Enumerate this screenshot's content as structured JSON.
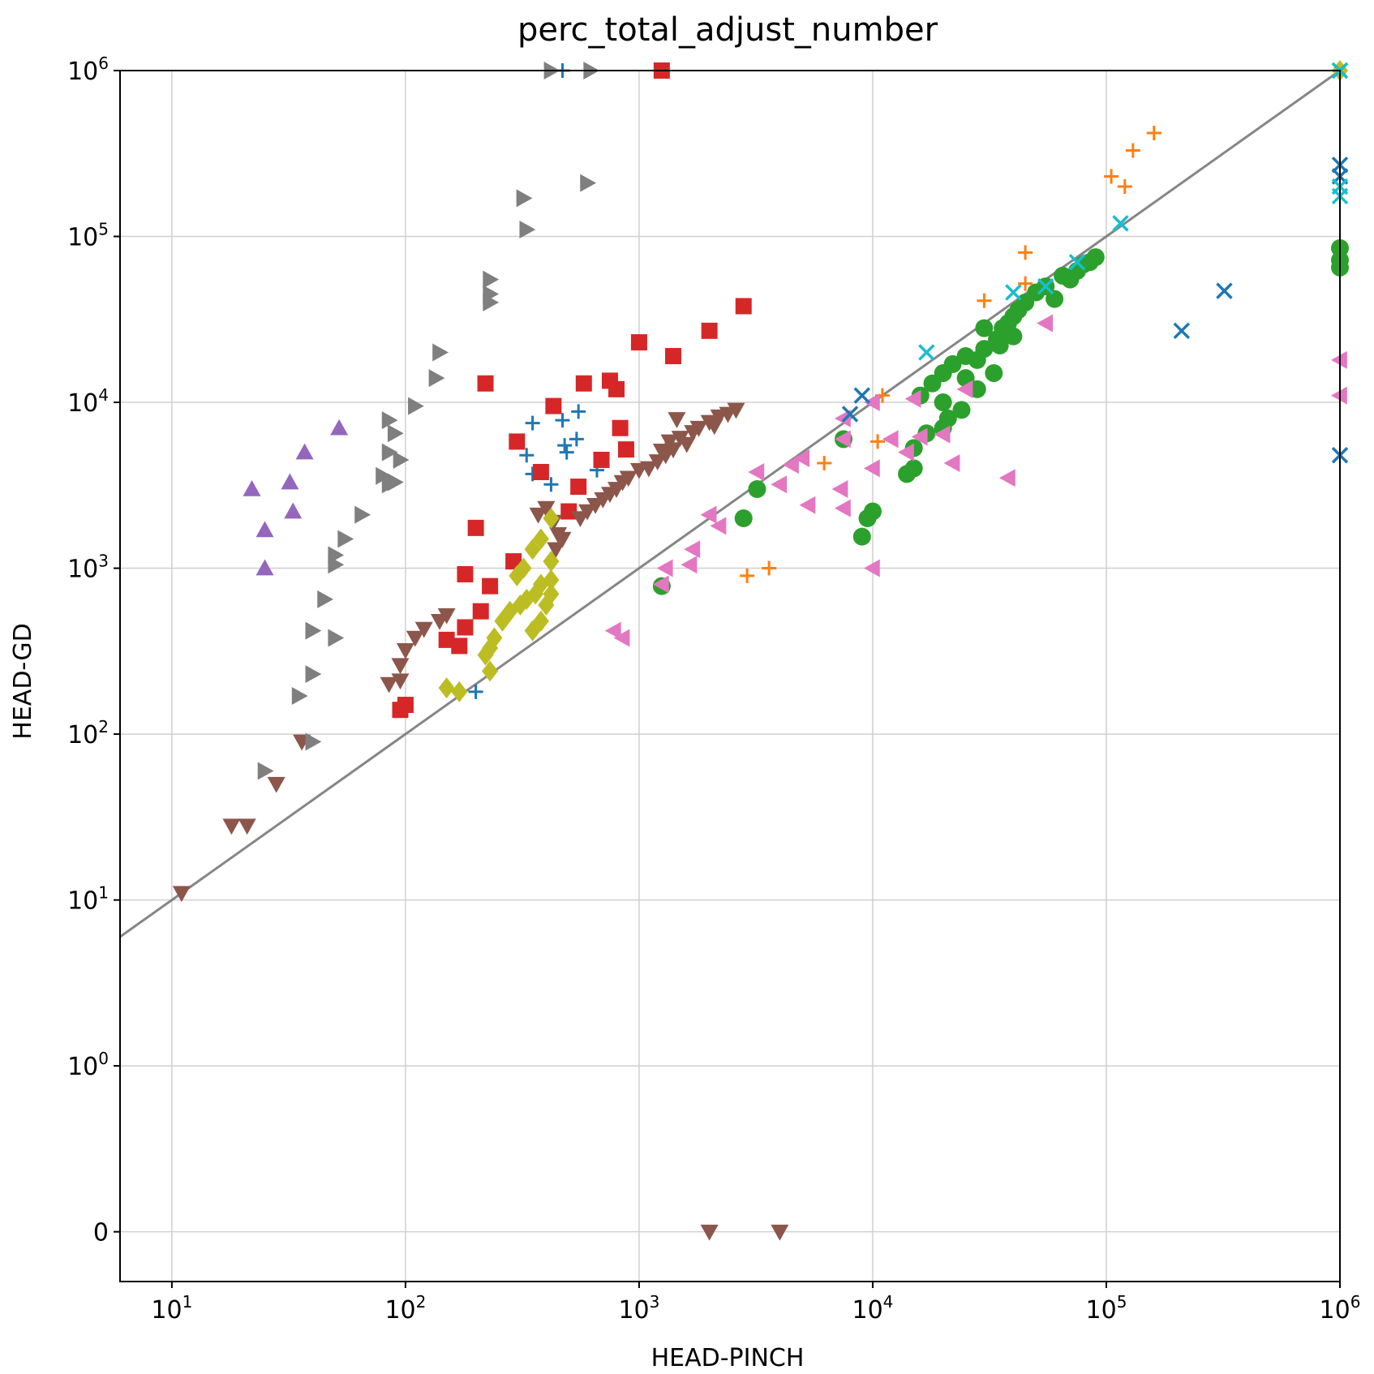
{
  "chart_data": {
    "type": "scatter",
    "title": "perc_total_adjust_number",
    "xlabel": "HEAD-PINCH",
    "ylabel": "HEAD-GD",
    "xscale": "log",
    "yscale": "symlog",
    "xlim": [
      6,
      1000000
    ],
    "ylim": [
      -0.3,
      1000000
    ],
    "grid": true,
    "legend": "none",
    "x_ticks": [
      {
        "value": 10,
        "base": "10",
        "exp": "1"
      },
      {
        "value": 100,
        "base": "10",
        "exp": "2"
      },
      {
        "value": 1000,
        "base": "10",
        "exp": "3"
      },
      {
        "value": 10000,
        "base": "10",
        "exp": "4"
      },
      {
        "value": 100000,
        "base": "10",
        "exp": "5"
      },
      {
        "value": 1000000,
        "base": "10",
        "exp": "6"
      }
    ],
    "y_ticks": [
      {
        "value": 0,
        "base": "0",
        "exp": ""
      },
      {
        "value": 1,
        "base": "10",
        "exp": "0"
      },
      {
        "value": 10,
        "base": "10",
        "exp": "1"
      },
      {
        "value": 100,
        "base": "10",
        "exp": "2"
      },
      {
        "value": 1000,
        "base": "10",
        "exp": "3"
      },
      {
        "value": 10000,
        "base": "10",
        "exp": "4"
      },
      {
        "value": 100000,
        "base": "10",
        "exp": "5"
      },
      {
        "value": 1000000,
        "base": "10",
        "exp": "6"
      }
    ],
    "reference_line": {
      "x": [
        6,
        1000000
      ],
      "y": [
        6,
        1000000
      ],
      "color": "#808080"
    },
    "series": [
      {
        "marker": "plus",
        "color": "#1f77b4",
        "points": [
          [
            470,
            1000000
          ],
          [
            350,
            7500
          ],
          [
            470,
            7800
          ],
          [
            550,
            8800
          ],
          [
            330,
            4800
          ],
          [
            480,
            5500
          ],
          [
            490,
            5000
          ],
          [
            540,
            6000
          ],
          [
            350,
            3700
          ],
          [
            420,
            3200
          ],
          [
            660,
            3900
          ],
          [
            200,
            180
          ]
        ]
      },
      {
        "marker": "plus",
        "color": "#ff7f0e",
        "points": [
          [
            160000,
            420000
          ],
          [
            130000,
            330000
          ],
          [
            105000,
            230000
          ],
          [
            120000,
            200000
          ],
          [
            45000,
            80000
          ],
          [
            45000,
            52000
          ],
          [
            30000,
            41000
          ],
          [
            21000,
            16000
          ],
          [
            11000,
            11000
          ],
          [
            10500,
            5800
          ],
          [
            6200,
            4300
          ],
          [
            3600,
            1000
          ],
          [
            2900,
            900
          ]
        ]
      },
      {
        "marker": "circle",
        "color": "#2ca02c",
        "points": [
          [
            90000,
            75000
          ],
          [
            80000,
            68000
          ],
          [
            65000,
            58000
          ],
          [
            55000,
            50000
          ],
          [
            50000,
            46000
          ],
          [
            45000,
            40000
          ],
          [
            42000,
            36000
          ],
          [
            40000,
            33000
          ],
          [
            38000,
            30000
          ],
          [
            36000,
            28000
          ],
          [
            34000,
            24000
          ],
          [
            30000,
            21000
          ],
          [
            28000,
            18000
          ],
          [
            25000,
            19000
          ],
          [
            22000,
            17000
          ],
          [
            20000,
            15000
          ],
          [
            18000,
            13000
          ],
          [
            16000,
            11000
          ],
          [
            30000,
            28000
          ],
          [
            35000,
            22000
          ],
          [
            40000,
            25000
          ],
          [
            25000,
            14000
          ],
          [
            24000,
            9000
          ],
          [
            21000,
            8000
          ],
          [
            20000,
            7000
          ],
          [
            17000,
            6500
          ],
          [
            15000,
            4000
          ],
          [
            14000,
            3700
          ],
          [
            15000,
            5300
          ],
          [
            10000,
            2200
          ],
          [
            9500,
            2000
          ],
          [
            9000,
            1550
          ],
          [
            7500,
            6000
          ],
          [
            3200,
            3000
          ],
          [
            2800,
            2000
          ],
          [
            1250,
            780
          ],
          [
            1000000,
            85000
          ],
          [
            1000000,
            72000
          ],
          [
            1000000,
            65000
          ],
          [
            33000,
            15000
          ],
          [
            28000,
            12000
          ],
          [
            20000,
            10000
          ],
          [
            60000,
            42000
          ],
          [
            70000,
            55000
          ],
          [
            85000,
            70000
          ],
          [
            75000,
            62000
          ]
        ]
      },
      {
        "marker": "square",
        "color": "#d62728",
        "points": [
          [
            1250,
            1000000
          ],
          [
            2800,
            38000
          ],
          [
            2000,
            27000
          ],
          [
            1400,
            19000
          ],
          [
            1000,
            23000
          ],
          [
            220,
            13000
          ],
          [
            430,
            9500
          ],
          [
            580,
            13000
          ],
          [
            750,
            13500
          ],
          [
            800,
            12000
          ],
          [
            830,
            7000
          ],
          [
            880,
            5200
          ],
          [
            690,
            4500
          ],
          [
            300,
            5800
          ],
          [
            380,
            3800
          ],
          [
            550,
            3100
          ],
          [
            500,
            2200
          ],
          [
            200,
            1750
          ],
          [
            290,
            1100
          ],
          [
            180,
            920
          ],
          [
            230,
            780
          ],
          [
            210,
            550
          ],
          [
            180,
            440
          ],
          [
            150,
            370
          ],
          [
            170,
            340
          ],
          [
            95,
            140
          ],
          [
            100,
            150
          ]
        ]
      },
      {
        "marker": "triangle-up",
        "color": "#9467bd",
        "points": [
          [
            52,
            7000
          ],
          [
            37,
            5000
          ],
          [
            32,
            3300
          ],
          [
            22,
            3000
          ],
          [
            33,
            2200
          ],
          [
            25,
            1700
          ],
          [
            25,
            1000
          ]
        ]
      },
      {
        "marker": "triangle-down",
        "color": "#8c564b",
        "points": [
          [
            2600,
            9000
          ],
          [
            2400,
            8500
          ],
          [
            2200,
            8200
          ],
          [
            2000,
            7600
          ],
          [
            1800,
            7000
          ],
          [
            1700,
            6600
          ],
          [
            1500,
            6100
          ],
          [
            1600,
            5600
          ],
          [
            1400,
            5200
          ],
          [
            1300,
            4800
          ],
          [
            1200,
            4400
          ],
          [
            1100,
            4000
          ],
          [
            1000,
            3900
          ],
          [
            900,
            3500
          ],
          [
            850,
            3300
          ],
          [
            800,
            3000
          ],
          [
            750,
            2800
          ],
          [
            700,
            2600
          ],
          [
            650,
            2400
          ],
          [
            600,
            2200
          ],
          [
            560,
            2000
          ],
          [
            1450,
            7900
          ],
          [
            1350,
            5800
          ],
          [
            1250,
            5100
          ],
          [
            2100,
            7200
          ],
          [
            400,
            2300
          ],
          [
            370,
            2100
          ],
          [
            430,
            1900
          ],
          [
            450,
            1600
          ],
          [
            470,
            1500
          ],
          [
            440,
            1300
          ],
          [
            150,
            520
          ],
          [
            140,
            480
          ],
          [
            120,
            430
          ],
          [
            110,
            380
          ],
          [
            100,
            320
          ],
          [
            95,
            260
          ],
          [
            85,
            200
          ],
          [
            95,
            210
          ],
          [
            36,
            90
          ],
          [
            28,
            50
          ],
          [
            21,
            28
          ],
          [
            18,
            28
          ],
          [
            11,
            11
          ],
          [
            2000,
            0
          ],
          [
            4000,
            0
          ]
        ]
      },
      {
        "marker": "triangle-left",
        "color": "#e377c2",
        "points": [
          [
            1000000,
            18000
          ],
          [
            1000000,
            11000
          ],
          [
            55000,
            30000
          ],
          [
            38000,
            3500
          ],
          [
            22000,
            4300
          ],
          [
            14000,
            5000
          ],
          [
            12000,
            6000
          ],
          [
            16000,
            6200
          ],
          [
            20000,
            6400
          ],
          [
            10000,
            4000
          ],
          [
            10000,
            10000
          ],
          [
            15000,
            10500
          ],
          [
            25000,
            12000
          ],
          [
            7500,
            8000
          ],
          [
            7500,
            6000
          ],
          [
            5000,
            4600
          ],
          [
            4500,
            4200
          ],
          [
            3200,
            3800
          ],
          [
            4000,
            3200
          ],
          [
            5300,
            2400
          ],
          [
            7300,
            3000
          ],
          [
            7500,
            2300
          ],
          [
            1700,
            1300
          ],
          [
            1650,
            1050
          ],
          [
            2000,
            2100
          ],
          [
            2200,
            1800
          ],
          [
            1300,
            1000
          ],
          [
            1250,
            800
          ],
          [
            780,
            420
          ],
          [
            850,
            380
          ],
          [
            10000,
            1000
          ]
        ]
      },
      {
        "marker": "triangle-right",
        "color": "#7f7f7f",
        "points": [
          [
            420,
            1000000
          ],
          [
            620,
            1000000
          ],
          [
            600,
            210000
          ],
          [
            320,
            170000
          ],
          [
            330,
            110000
          ],
          [
            230,
            55000
          ],
          [
            230,
            45000
          ],
          [
            230,
            40000
          ],
          [
            140,
            20000
          ],
          [
            135,
            14000
          ],
          [
            110,
            9500
          ],
          [
            85,
            7800
          ],
          [
            90,
            6500
          ],
          [
            85,
            5000
          ],
          [
            95,
            4500
          ],
          [
            80,
            3600
          ],
          [
            85,
            3200
          ],
          [
            90,
            3300
          ],
          [
            65,
            2100
          ],
          [
            55,
            1500
          ],
          [
            50,
            1200
          ],
          [
            50,
            1050
          ],
          [
            45,
            650
          ],
          [
            40,
            420
          ],
          [
            50,
            380
          ],
          [
            40,
            230
          ],
          [
            35,
            170
          ],
          [
            40,
            90
          ],
          [
            25,
            60
          ]
        ]
      },
      {
        "marker": "diamond",
        "color": "#bcbd22",
        "points": [
          [
            420,
            2000
          ],
          [
            380,
            1500
          ],
          [
            350,
            1300
          ],
          [
            420,
            1100
          ],
          [
            320,
            1000
          ],
          [
            300,
            900
          ],
          [
            420,
            850
          ],
          [
            380,
            800
          ],
          [
            360,
            700
          ],
          [
            330,
            650
          ],
          [
            310,
            600
          ],
          [
            400,
            600
          ],
          [
            280,
            550
          ],
          [
            420,
            700
          ],
          [
            260,
            480
          ],
          [
            380,
            480
          ],
          [
            350,
            420
          ],
          [
            240,
            380
          ],
          [
            230,
            330
          ],
          [
            220,
            300
          ],
          [
            230,
            240
          ],
          [
            150,
            190
          ],
          [
            170,
            180
          ],
          [
            1000000,
            1000000
          ]
        ]
      },
      {
        "marker": "x",
        "color": "#1f77b4",
        "points": [
          [
            1000000,
            1000000
          ],
          [
            1000000,
            270000
          ],
          [
            1000000,
            230000
          ],
          [
            1000000,
            4800
          ],
          [
            320000,
            47000
          ],
          [
            210000,
            27000
          ],
          [
            9000,
            11000
          ],
          [
            8000,
            8500
          ]
        ]
      },
      {
        "marker": "x",
        "color": "#17becf",
        "points": [
          [
            1000000,
            1000000
          ],
          [
            1000000,
            200000
          ],
          [
            1000000,
            175000
          ],
          [
            115000,
            120000
          ],
          [
            75000,
            70000
          ],
          [
            55000,
            50000
          ],
          [
            40000,
            46000
          ],
          [
            17000,
            20000
          ]
        ]
      }
    ]
  }
}
